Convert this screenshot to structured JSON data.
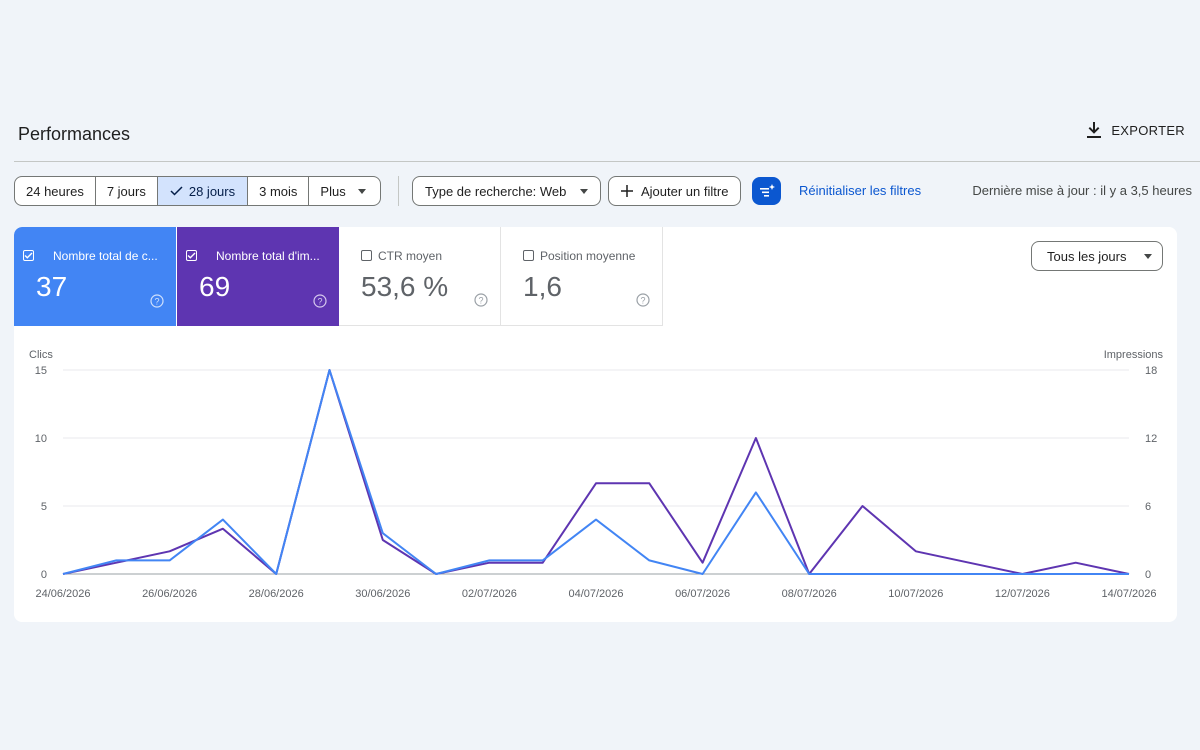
{
  "header": {
    "title": "Performances",
    "export_label": "EXPORTER"
  },
  "filters": {
    "date_range": [
      {
        "label": "24 heures",
        "active": false
      },
      {
        "label": "7 jours",
        "active": false
      },
      {
        "label": "28 jours",
        "active": true
      },
      {
        "label": "3 mois",
        "active": false
      },
      {
        "label": "Plus",
        "active": false
      }
    ],
    "search_type_label": "Type de recherche: Web",
    "add_filter_label": "Ajouter un filtre",
    "reset_label": "Réinitialiser les filtres",
    "last_update": "Dernière mise à jour : il y a 3,5 heures"
  },
  "metrics": {
    "clicks": {
      "label": "Nombre total de c...",
      "value": "37",
      "color": "#4285f4"
    },
    "impressions": {
      "label": "Nombre total d'im...",
      "value": "69",
      "color": "#5e35b1"
    },
    "ctr": {
      "label": "CTR moyen",
      "value": "53,6 %"
    },
    "position": {
      "label": "Position moyenne",
      "value": "1,6"
    }
  },
  "days_select": {
    "value": "Tous les jours"
  },
  "chart_data": {
    "type": "line",
    "y_left_label": "Clics",
    "y_right_label": "Impressions",
    "y_left_ticks": [
      0,
      5,
      10,
      15
    ],
    "y_right_ticks": [
      0,
      6,
      12,
      18
    ],
    "y_left_lim": [
      0,
      15
    ],
    "y_right_lim": [
      0,
      18
    ],
    "x_ticks": [
      "24/06/2026",
      "26/06/2026",
      "28/06/2026",
      "30/06/2026",
      "02/07/2026",
      "04/07/2026",
      "06/07/2026",
      "08/07/2026",
      "10/07/2026",
      "12/07/2026",
      "14/07/2026"
    ],
    "x": [
      "24/06/2026",
      "25/06/2026",
      "26/06/2026",
      "27/06/2026",
      "28/06/2026",
      "29/06/2026",
      "30/06/2026",
      "01/07/2026",
      "02/07/2026",
      "03/07/2026",
      "04/07/2026",
      "05/07/2026",
      "06/07/2026",
      "07/07/2026",
      "08/07/2026",
      "09/07/2026",
      "10/07/2026",
      "11/07/2026",
      "12/07/2026",
      "13/07/2026",
      "14/07/2026"
    ],
    "series": [
      {
        "name": "Clics",
        "axis": "left",
        "color": "#4285f4",
        "values": [
          0,
          1,
          1,
          4,
          0,
          15,
          3,
          0,
          1,
          1,
          4,
          1,
          0,
          6,
          0,
          0,
          0,
          0,
          0,
          0,
          0
        ]
      },
      {
        "name": "Impressions",
        "axis": "right",
        "color": "#5e35b1",
        "values": [
          0,
          1,
          2,
          4,
          0,
          18,
          3,
          0,
          1,
          1,
          8,
          8,
          1,
          12,
          0,
          6,
          2,
          1,
          0,
          1,
          0
        ]
      }
    ]
  }
}
